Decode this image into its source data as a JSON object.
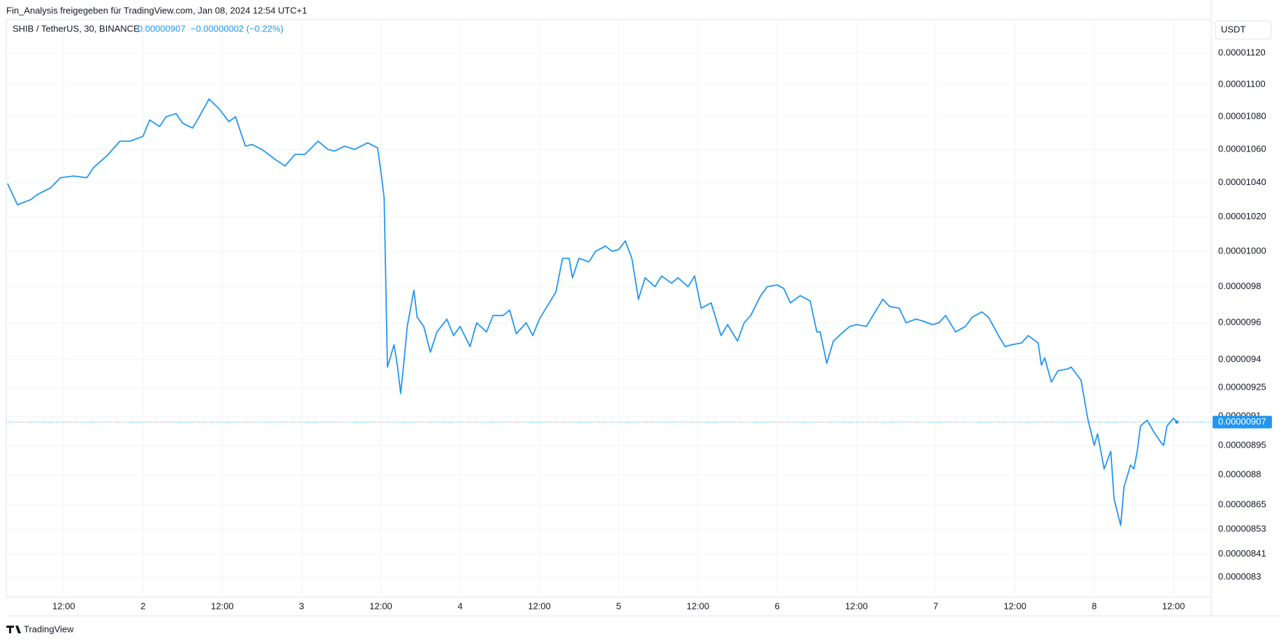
{
  "header": {
    "text": "Fin_Analysis freigegeben für TradingView.com, Jan 08, 2024 12:54 UTC+1"
  },
  "footer": {
    "brand": "TradingView"
  },
  "chart_data": {
    "type": "line",
    "title": "SHIB / TetherUS, 30, BINANCE",
    "last_price": 9.07e-06,
    "change": "−0.00000002 (−0.22%)",
    "currency": "USDT",
    "color": "#2196f3",
    "log_scale": true,
    "grid": true,
    "xlim": [
      3.3,
      185.7
    ],
    "xticks": [
      {
        "value": 12,
        "label": "12:00"
      },
      {
        "value": 24,
        "label": "2"
      },
      {
        "value": 36,
        "label": "12:00"
      },
      {
        "value": 48,
        "label": "3"
      },
      {
        "value": 60,
        "label": "12:00"
      },
      {
        "value": 72,
        "label": "4"
      },
      {
        "value": 84,
        "label": "12:00"
      },
      {
        "value": 96,
        "label": "5"
      },
      {
        "value": 108,
        "label": "12:00"
      },
      {
        "value": 120,
        "label": "6"
      },
      {
        "value": 132,
        "label": "12:00"
      },
      {
        "value": 144,
        "label": "7"
      },
      {
        "value": 156,
        "label": "12:00"
      },
      {
        "value": 168,
        "label": "8"
      },
      {
        "value": 180,
        "label": "12:00"
      }
    ],
    "ylim": [
      8.207e-06,
      1.1417e-05
    ],
    "yticks": [
      {
        "value": 1.12e-05,
        "label": "0.00001120"
      },
      {
        "value": 1.1e-05,
        "label": "0.00001100"
      },
      {
        "value": 1.08e-05,
        "label": "0.00001080"
      },
      {
        "value": 1.06e-05,
        "label": "0.00001060"
      },
      {
        "value": 1.04e-05,
        "label": "0.00001040"
      },
      {
        "value": 1.02e-05,
        "label": "0.00001020"
      },
      {
        "value": 1e-05,
        "label": "0.00001000"
      },
      9.8e-06,
      9.6e-06,
      9.4e-06,
      9.25e-06,
      9.1e-06,
      8.95e-06,
      8.8e-06,
      8.65e-06,
      8.53e-06,
      8.41e-06,
      8.3e-06
    ],
    "x": [
      3.5,
      5,
      7,
      8,
      10,
      11.5,
      13.5,
      15.5,
      16.5,
      18.5,
      20.5,
      22,
      24,
      25,
      26.5,
      27.5,
      29,
      30,
      31.5,
      32.5,
      34,
      35.5,
      37,
      38,
      39.5,
      40.5,
      42,
      44,
      45.5,
      47,
      48.5,
      50.5,
      52,
      53,
      54.5,
      56,
      58,
      59.5,
      60,
      60.5,
      61,
      62,
      62.5,
      63,
      63.5,
      64,
      65,
      65.5,
      66.5,
      67.5,
      68.5,
      70,
      71,
      72,
      73.5,
      74.5,
      76,
      77,
      78.5,
      79.5,
      80.5,
      82,
      83,
      84,
      85,
      86.5,
      87.5,
      88.5,
      89,
      90,
      91.5,
      92.5,
      94,
      95,
      96,
      97,
      98,
      99,
      100,
      101.5,
      102.5,
      104,
      105,
      106.5,
      107.5,
      108.5,
      110,
      111.5,
      112.5,
      114,
      115,
      116,
      117.5,
      118.5,
      120,
      121,
      122,
      123.5,
      125,
      126,
      126.5,
      127.5,
      128.5,
      130,
      131,
      132,
      133.5,
      134.5,
      136,
      137,
      138.5,
      139.5,
      141,
      142,
      143.5,
      144.5,
      145.5,
      147,
      148.5,
      149.5,
      151,
      152,
      153.5,
      154.5,
      155.5,
      157,
      158,
      159.5,
      160,
      160.5,
      161.5,
      162.5,
      164,
      164.5,
      166,
      167,
      168,
      168.5,
      169.5,
      170.5,
      171,
      172,
      172.5,
      173.5,
      174,
      174.5,
      175,
      176,
      177,
      178,
      178.5,
      179,
      180,
      180.5
    ],
    "values": [
      1.0395e-05,
      1.027e-05,
      1.03e-05,
      1.033e-05,
      1.037e-05,
      1.043e-05,
      1.044e-05,
      1.043e-05,
      1.049e-05,
      1.056e-05,
      1.065e-05,
      1.065e-05,
      1.068e-05,
      1.078e-05,
      1.074e-05,
      1.08e-05,
      1.082e-05,
      1.076e-05,
      1.073e-05,
      1.08e-05,
      1.091e-05,
      1.085e-05,
      1.077e-05,
      1.08e-05,
      1.062e-05,
      1.063e-05,
      1.06e-05,
      1.054e-05,
      1.05e-05,
      1.057e-05,
      1.057e-05,
      1.065e-05,
      1.06e-05,
      1.059e-05,
      1.062e-05,
      1.06e-05,
      1.064e-05,
      1.061e-05,
      1.047e-05,
      1.031e-05,
      9.36e-06,
      9.48e-06,
      9.37e-06,
      9.22e-06,
      9.39e-06,
      9.58e-06,
      9.78e-06,
      9.63e-06,
      9.58e-06,
      9.44e-06,
      9.55e-06,
      9.62e-06,
      9.53e-06,
      9.58e-06,
      9.47e-06,
      9.6e-06,
      9.55e-06,
      9.64e-06,
      9.64e-06,
      9.67e-06,
      9.54e-06,
      9.6e-06,
      9.53e-06,
      9.62e-06,
      9.68e-06,
      9.77e-06,
      9.96e-06,
      9.96e-06,
      9.85e-06,
      9.96e-06,
      9.94e-06,
      1e-05,
      1.003e-05,
      1e-05,
      1.001e-05,
      1.006e-05,
      9.96e-06,
      9.73e-06,
      9.85e-06,
      9.8e-06,
      9.86e-06,
      9.82e-06,
      9.85e-06,
      9.8e-06,
      9.86e-06,
      9.68e-06,
      9.71e-06,
      9.53e-06,
      9.59e-06,
      9.5e-06,
      9.6e-06,
      9.64e-06,
      9.75e-06,
      9.8e-06,
      9.81e-06,
      9.79e-06,
      9.71e-06,
      9.75e-06,
      9.72e-06,
      9.55e-06,
      9.55e-06,
      9.38e-06,
      9.5e-06,
      9.55e-06,
      9.58e-06,
      9.59e-06,
      9.58e-06,
      9.64e-06,
      9.73e-06,
      9.69e-06,
      9.68e-06,
      9.6e-06,
      9.62e-06,
      9.61e-06,
      9.59e-06,
      9.6e-06,
      9.64e-06,
      9.55e-06,
      9.58e-06,
      9.63e-06,
      9.66e-06,
      9.63e-06,
      9.53e-06,
      9.47e-06,
      9.48e-06,
      9.49e-06,
      9.53e-06,
      9.49e-06,
      9.37e-06,
      9.41e-06,
      9.28e-06,
      9.34e-06,
      9.35e-06,
      9.36e-06,
      9.29e-06,
      9.09e-06,
      8.95e-06,
      9.01e-06,
      8.83e-06,
      8.92e-06,
      8.68e-06,
      8.55e-06,
      8.74e-06,
      8.85e-06,
      8.83e-06,
      8.92e-06,
      9.05e-06,
      9.08e-06,
      9.02e-06,
      8.97e-06,
      8.95e-06,
      9.05e-06,
      9.09e-06,
      9.07e-06
    ]
  }
}
